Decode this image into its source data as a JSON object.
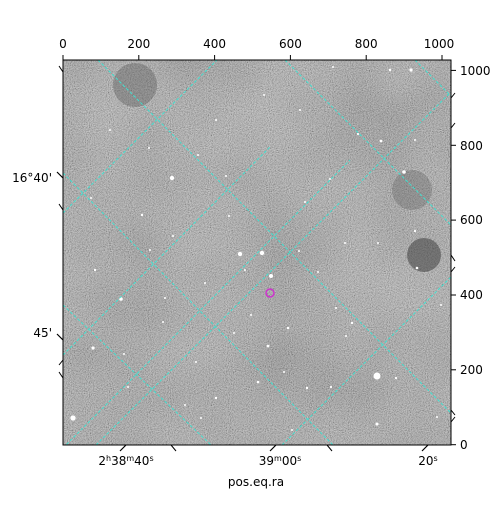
{
  "axes": {
    "bottom_label": "pos.eq.ra",
    "bottom_ticks": [
      {
        "h": "2",
        "h_unit": "h",
        "m": "38",
        "m_unit": "m",
        "s": "40",
        "s_unit": "s"
      },
      {
        "m": "39",
        "m_unit": "m",
        "s": "00",
        "s_unit": "s"
      },
      {
        "s": "20",
        "s_unit": "s"
      }
    ],
    "left_ticks": [
      "16°40'",
      "45'"
    ],
    "top_ticks": [
      "0",
      "200",
      "400",
      "600",
      "800",
      "1000"
    ],
    "right_ticks": [
      "1000",
      "800",
      "600",
      "400",
      "200",
      "0"
    ]
  },
  "image": {
    "background_color": "#7a7a7a",
    "grid_color": "#40e0d0",
    "marker_color": "#cc33cc",
    "marker_shape": "circle"
  }
}
